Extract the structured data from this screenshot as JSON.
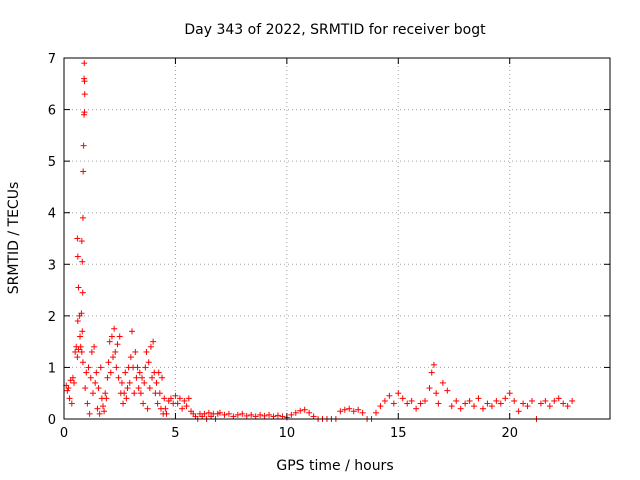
{
  "chart_data": {
    "type": "scatter",
    "title": "Day 343 of 2022, SRMTID for receiver bogt",
    "xlabel": "GPS time / hours",
    "ylabel": "SRMTID / TECUs",
    "xlim": [
      0,
      24.5
    ],
    "ylim": [
      0,
      7
    ],
    "xticks": [
      0,
      5,
      10,
      15,
      20
    ],
    "yticks": [
      0,
      1,
      2,
      3,
      4,
      5,
      6,
      7
    ],
    "grid": true,
    "marker": "plus",
    "series": [
      {
        "name": "SRMTID",
        "color": "#ff0000",
        "points": [
          [
            0.1,
            0.65
          ],
          [
            0.15,
            0.55
          ],
          [
            0.2,
            0.6
          ],
          [
            0.25,
            0.4
          ],
          [
            0.3,
            0.75
          ],
          [
            0.35,
            0.3
          ],
          [
            0.4,
            0.8
          ],
          [
            0.45,
            0.7
          ],
          [
            0.5,
            1.3
          ],
          [
            0.55,
            1.4
          ],
          [
            0.6,
            1.2
          ],
          [
            0.62,
            1.9
          ],
          [
            0.65,
            1.35
          ],
          [
            0.7,
            2.0
          ],
          [
            0.72,
            1.6
          ],
          [
            0.75,
            1.4
          ],
          [
            0.78,
            2.05
          ],
          [
            0.8,
            1.3
          ],
          [
            0.82,
            1.7
          ],
          [
            0.85,
            1.1
          ],
          [
            0.6,
            3.5
          ],
          [
            0.62,
            3.15
          ],
          [
            0.65,
            2.55
          ],
          [
            0.8,
            3.45
          ],
          [
            0.82,
            3.05
          ],
          [
            0.84,
            2.45
          ],
          [
            0.85,
            3.9
          ],
          [
            0.86,
            4.8
          ],
          [
            0.88,
            5.3
          ],
          [
            0.9,
            5.9
          ],
          [
            0.92,
            5.95
          ],
          [
            0.93,
            6.3
          ],
          [
            0.9,
            6.6
          ],
          [
            0.92,
            6.55
          ],
          [
            0.91,
            6.9
          ],
          [
            0.95,
            0.6
          ],
          [
            1.0,
            0.9
          ],
          [
            1.05,
            0.3
          ],
          [
            1.1,
            1.0
          ],
          [
            1.15,
            0.1
          ],
          [
            1.2,
            0.8
          ],
          [
            1.25,
            1.3
          ],
          [
            1.3,
            0.5
          ],
          [
            1.35,
            1.4
          ],
          [
            1.4,
            0.7
          ],
          [
            1.45,
            0.9
          ],
          [
            1.5,
            0.2
          ],
          [
            1.55,
            0.6
          ],
          [
            1.6,
            0.1
          ],
          [
            1.65,
            1.0
          ],
          [
            1.7,
            0.4
          ],
          [
            1.75,
            0.25
          ],
          [
            1.8,
            0.15
          ],
          [
            1.85,
            0.5
          ],
          [
            1.9,
            0.4
          ],
          [
            1.95,
            0.8
          ],
          [
            2.0,
            1.1
          ],
          [
            2.05,
            1.5
          ],
          [
            2.1,
            0.9
          ],
          [
            2.15,
            1.6
          ],
          [
            2.2,
            1.2
          ],
          [
            2.25,
            1.75
          ],
          [
            2.3,
            1.3
          ],
          [
            2.35,
            1.0
          ],
          [
            2.4,
            1.45
          ],
          [
            2.45,
            0.8
          ],
          [
            2.5,
            1.6
          ],
          [
            2.55,
            0.5
          ],
          [
            2.6,
            0.7
          ],
          [
            2.65,
            0.3
          ],
          [
            2.7,
            0.5
          ],
          [
            2.75,
            0.9
          ],
          [
            2.8,
            0.4
          ],
          [
            2.85,
            0.6
          ],
          [
            2.9,
            1.0
          ],
          [
            2.95,
            0.7
          ],
          [
            3.0,
            1.2
          ],
          [
            3.05,
            1.7
          ],
          [
            3.1,
            1.0
          ],
          [
            3.15,
            0.5
          ],
          [
            3.2,
            1.3
          ],
          [
            3.25,
            0.8
          ],
          [
            3.3,
            1.0
          ],
          [
            3.35,
            0.6
          ],
          [
            3.4,
            0.9
          ],
          [
            3.45,
            0.5
          ],
          [
            3.5,
            0.8
          ],
          [
            3.55,
            0.3
          ],
          [
            3.6,
            0.7
          ],
          [
            3.65,
            1.0
          ],
          [
            3.7,
            1.3
          ],
          [
            3.75,
            0.2
          ],
          [
            3.8,
            1.1
          ],
          [
            3.85,
            0.6
          ],
          [
            3.9,
            1.4
          ],
          [
            3.95,
            0.8
          ],
          [
            4.0,
            1.5
          ],
          [
            4.05,
            0.9
          ],
          [
            4.1,
            0.5
          ],
          [
            4.15,
            0.7
          ],
          [
            4.2,
            0.3
          ],
          [
            4.25,
            0.9
          ],
          [
            4.3,
            0.5
          ],
          [
            4.35,
            0.2
          ],
          [
            4.4,
            0.8
          ],
          [
            4.45,
            0.1
          ],
          [
            4.5,
            0.4
          ],
          [
            4.55,
            0.2
          ],
          [
            4.6,
            0.1
          ],
          [
            4.7,
            0.35
          ],
          [
            4.8,
            0.4
          ],
          [
            4.9,
            0.3
          ],
          [
            5.0,
            0.45
          ],
          [
            5.1,
            0.3
          ],
          [
            5.2,
            0.4
          ],
          [
            5.3,
            0.2
          ],
          [
            5.4,
            0.35
          ],
          [
            5.5,
            0.25
          ],
          [
            5.6,
            0.4
          ],
          [
            5.7,
            0.15
          ],
          [
            5.8,
            0.1
          ],
          [
            5.9,
            0.05
          ],
          [
            6.0,
            0.0
          ],
          [
            6.1,
            0.1
          ],
          [
            6.2,
            0.05
          ],
          [
            6.3,
            0.1
          ],
          [
            6.4,
            0.0
          ],
          [
            6.5,
            0.12
          ],
          [
            6.6,
            0.05
          ],
          [
            6.7,
            0.1
          ],
          [
            6.8,
            0.0
          ],
          [
            6.9,
            0.1
          ],
          [
            7.0,
            0.12
          ],
          [
            7.2,
            0.08
          ],
          [
            7.4,
            0.1
          ],
          [
            7.6,
            0.05
          ],
          [
            7.8,
            0.08
          ],
          [
            8.0,
            0.1
          ],
          [
            8.2,
            0.06
          ],
          [
            8.4,
            0.08
          ],
          [
            8.6,
            0.05
          ],
          [
            8.8,
            0.08
          ],
          [
            9.0,
            0.06
          ],
          [
            9.2,
            0.08
          ],
          [
            9.4,
            0.05
          ],
          [
            9.6,
            0.07
          ],
          [
            9.8,
            0.05
          ],
          [
            10.0,
            0.03
          ],
          [
            10.2,
            0.08
          ],
          [
            10.4,
            0.12
          ],
          [
            10.6,
            0.16
          ],
          [
            10.8,
            0.18
          ],
          [
            11.0,
            0.12
          ],
          [
            11.2,
            0.05
          ],
          [
            11.4,
            0.0
          ],
          [
            11.6,
            0.0
          ],
          [
            11.8,
            0.0
          ],
          [
            12.0,
            0.0
          ],
          [
            12.2,
            0.0
          ],
          [
            12.4,
            0.15
          ],
          [
            12.6,
            0.18
          ],
          [
            12.8,
            0.2
          ],
          [
            13.0,
            0.15
          ],
          [
            13.2,
            0.18
          ],
          [
            13.4,
            0.12
          ],
          [
            13.6,
            0.0
          ],
          [
            13.8,
            0.0
          ],
          [
            14.0,
            0.12
          ],
          [
            14.2,
            0.25
          ],
          [
            14.4,
            0.35
          ],
          [
            14.6,
            0.45
          ],
          [
            14.8,
            0.3
          ],
          [
            15.0,
            0.5
          ],
          [
            15.2,
            0.4
          ],
          [
            15.4,
            0.3
          ],
          [
            15.6,
            0.35
          ],
          [
            15.8,
            0.2
          ],
          [
            16.0,
            0.3
          ],
          [
            16.2,
            0.35
          ],
          [
            16.4,
            0.6
          ],
          [
            16.5,
            0.9
          ],
          [
            16.6,
            1.05
          ],
          [
            16.7,
            0.5
          ],
          [
            16.8,
            0.3
          ],
          [
            17.0,
            0.7
          ],
          [
            17.2,
            0.55
          ],
          [
            17.4,
            0.25
          ],
          [
            17.6,
            0.35
          ],
          [
            17.8,
            0.2
          ],
          [
            18.0,
            0.3
          ],
          [
            18.2,
            0.35
          ],
          [
            18.4,
            0.25
          ],
          [
            18.6,
            0.4
          ],
          [
            18.8,
            0.2
          ],
          [
            19.0,
            0.3
          ],
          [
            19.2,
            0.25
          ],
          [
            19.4,
            0.35
          ],
          [
            19.6,
            0.3
          ],
          [
            19.8,
            0.4
          ],
          [
            20.0,
            0.5
          ],
          [
            20.2,
            0.35
          ],
          [
            20.4,
            0.15
          ],
          [
            20.6,
            0.3
          ],
          [
            20.8,
            0.25
          ],
          [
            21.0,
            0.35
          ],
          [
            21.2,
            0.0
          ],
          [
            21.4,
            0.3
          ],
          [
            21.6,
            0.35
          ],
          [
            21.8,
            0.25
          ],
          [
            22.0,
            0.35
          ],
          [
            22.2,
            0.4
          ],
          [
            22.4,
            0.3
          ],
          [
            22.6,
            0.25
          ],
          [
            22.8,
            0.35
          ]
        ]
      }
    ]
  }
}
